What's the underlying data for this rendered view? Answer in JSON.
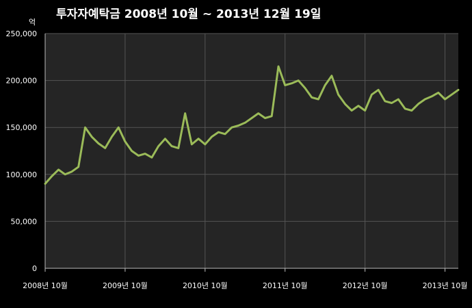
{
  "chart_data": {
    "type": "line",
    "title": "투자자예탁금    2008년 10월 ~ 2013년 12월 19일",
    "y_unit": "억",
    "ylim": [
      0,
      250000
    ],
    "y_ticks": [
      0,
      50000,
      100000,
      150000,
      200000,
      250000
    ],
    "y_tick_labels": [
      "0",
      "50,000",
      "100,000",
      "150,000",
      "200,000",
      "250,000"
    ],
    "x_tick_labels": [
      "2008년 10월",
      "2009년 10월",
      "2010년 10월",
      "2011년 10월",
      "2012년 10월",
      "2013년 10월"
    ],
    "x_ticks": [
      "2008-10",
      "2009-10",
      "2010-10",
      "2011-10",
      "2012-10",
      "2013-10"
    ],
    "xlim": [
      "2008-10",
      "2013-12"
    ],
    "grid": true,
    "colors": {
      "background": "#000000",
      "plot_area": "#252525",
      "grid": "#555555",
      "line": "#9bbb59",
      "text": "#ffffff"
    },
    "series": [
      {
        "x": [
          "2008-10",
          "2008-11",
          "2008-12",
          "2009-01",
          "2009-02",
          "2009-03",
          "2009-04",
          "2009-05",
          "2009-06",
          "2009-07",
          "2009-08",
          "2009-09",
          "2009-10",
          "2009-11",
          "2009-12",
          "2010-01",
          "2010-02",
          "2010-03",
          "2010-04",
          "2010-05",
          "2010-06",
          "2010-07",
          "2010-08",
          "2010-09",
          "2010-10",
          "2010-11",
          "2010-12",
          "2011-01",
          "2011-02",
          "2011-03",
          "2011-04",
          "2011-05",
          "2011-06",
          "2011-07",
          "2011-08",
          "2011-09",
          "2011-10",
          "2011-11",
          "2011-12",
          "2012-01",
          "2012-02",
          "2012-03",
          "2012-04",
          "2012-05",
          "2012-06",
          "2012-07",
          "2012-08",
          "2012-09",
          "2012-10",
          "2012-11",
          "2012-12",
          "2013-01",
          "2013-02",
          "2013-03",
          "2013-04",
          "2013-05",
          "2013-06",
          "2013-07",
          "2013-08",
          "2013-09",
          "2013-10",
          "2013-11",
          "2013-12"
        ],
        "values": [
          90000,
          98000,
          105000,
          100000,
          103000,
          108000,
          150000,
          140000,
          133000,
          128000,
          140000,
          150000,
          135000,
          125000,
          120000,
          122000,
          118000,
          130000,
          138000,
          130000,
          128000,
          165000,
          132000,
          138000,
          132000,
          140000,
          145000,
          143000,
          150000,
          152000,
          155000,
          160000,
          165000,
          160000,
          162000,
          215000,
          195000,
          197000,
          200000,
          192000,
          182000,
          180000,
          195000,
          205000,
          185000,
          175000,
          168000,
          173000,
          168000,
          185000,
          190000,
          178000,
          176000,
          180000,
          170000,
          168000,
          175000,
          180000,
          183000,
          187000,
          180000,
          185000,
          190000
        ]
      }
    ]
  }
}
